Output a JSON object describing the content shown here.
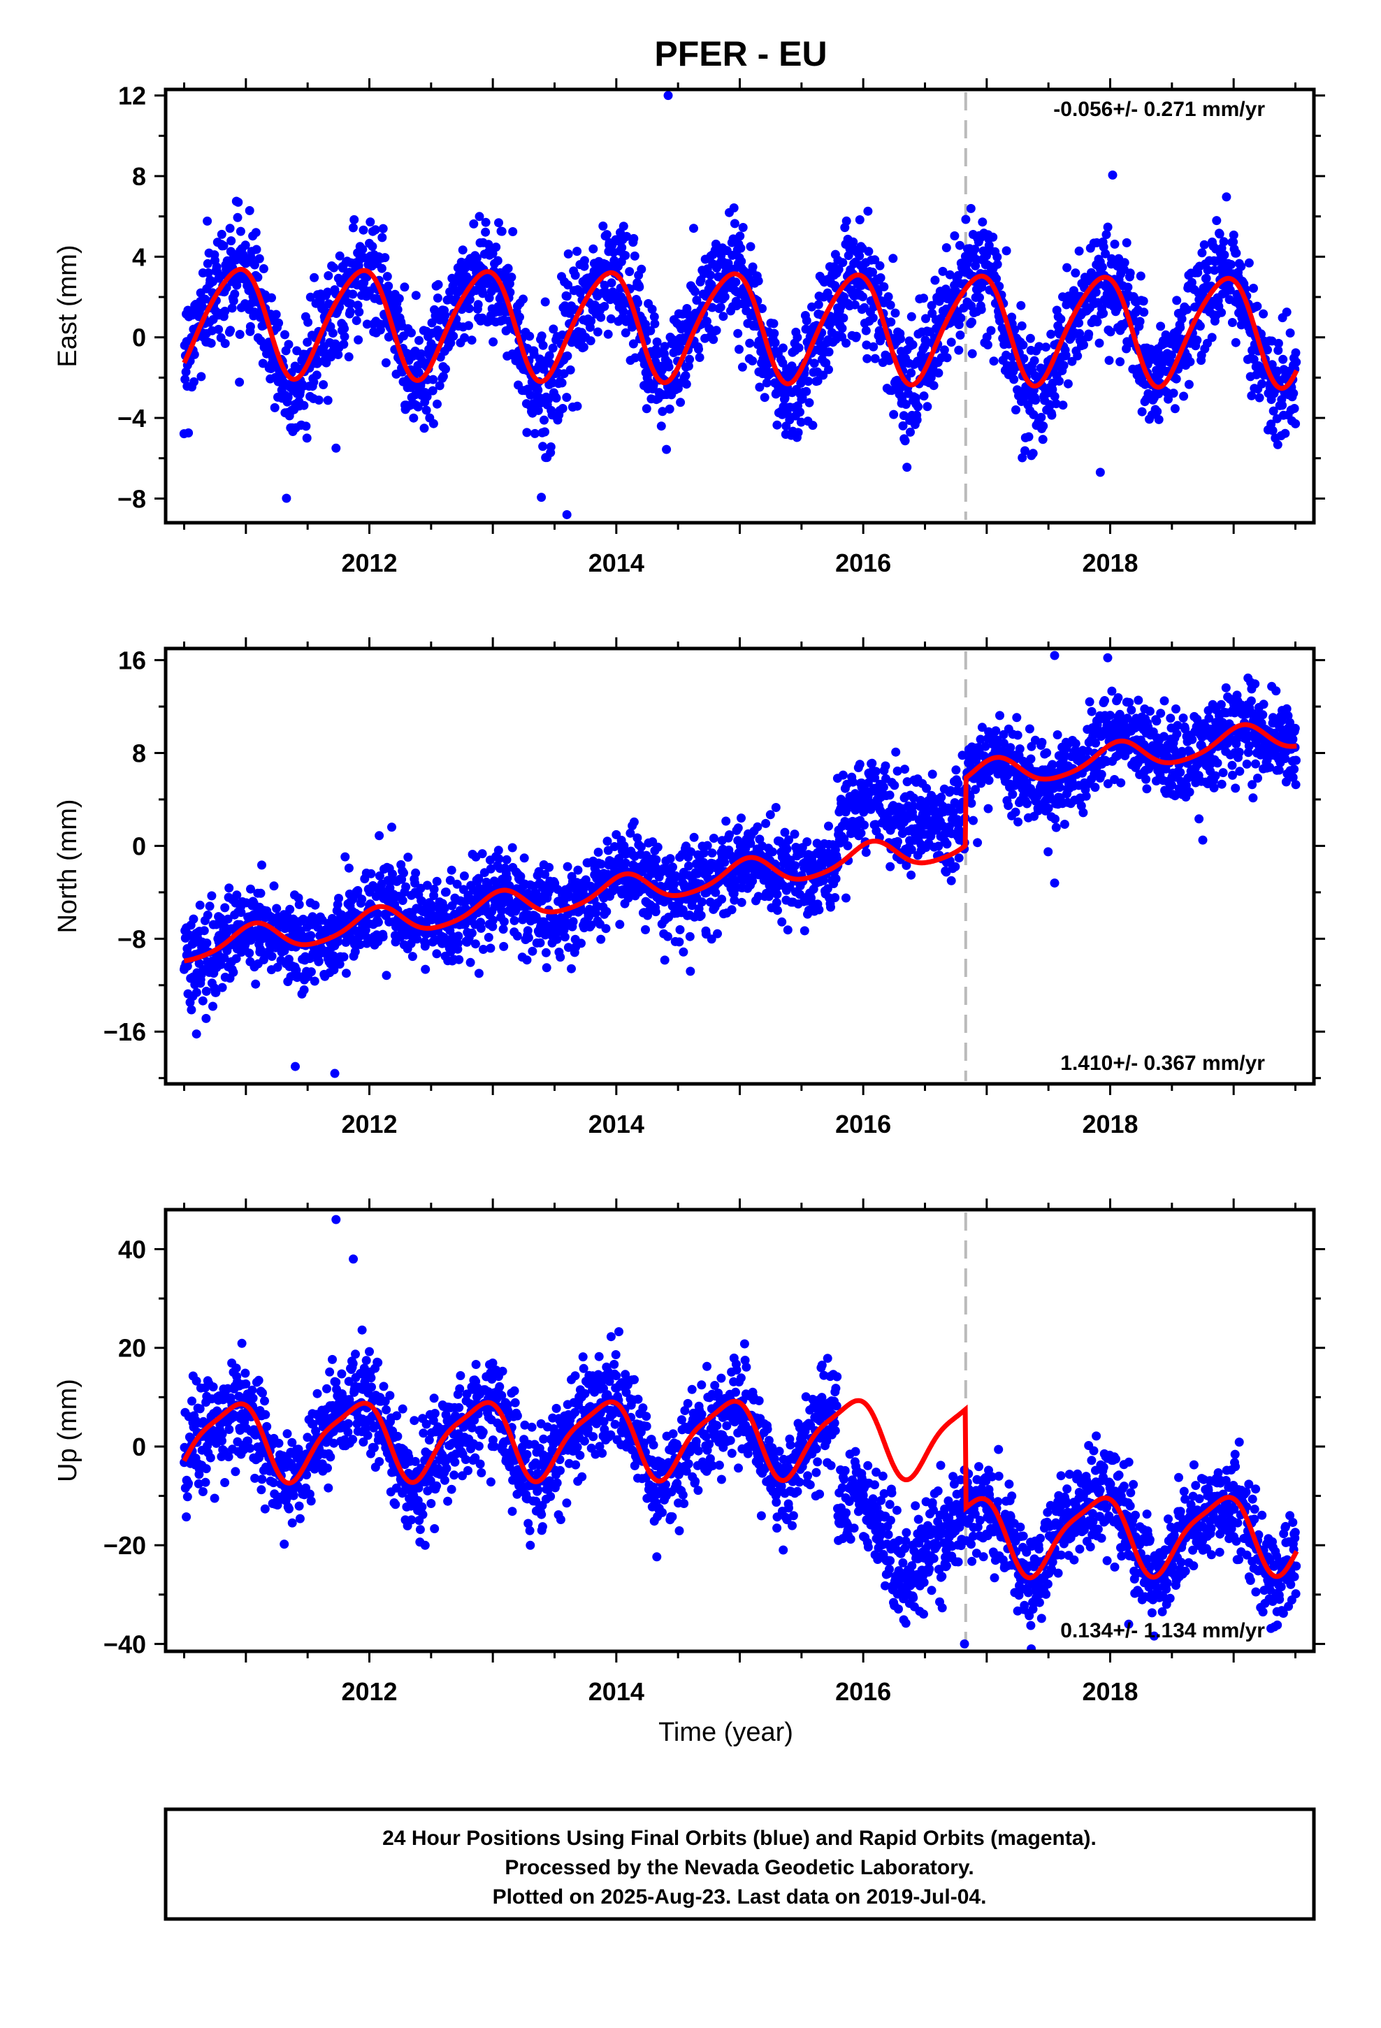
{
  "title": "PFER - EU",
  "chart_data": [
    {
      "type": "scatter",
      "panel": "east",
      "ylabel": "East (mm)",
      "xlabel": "",
      "xlim": [
        2010.35,
        2019.65
      ],
      "ylim": [
        -9.2,
        12.3
      ],
      "yticks": [
        -8,
        -4,
        0,
        4,
        8,
        12
      ],
      "ytick_labels": [
        "−8",
        "−4",
        "0",
        "4",
        "8",
        "12"
      ],
      "xticks": [
        2012,
        2014,
        2016,
        2018
      ],
      "xtick_labels": [
        "2012",
        "2014",
        "2016",
        "2018"
      ],
      "rate_text": "-0.056+/- 0.271 mm/yr",
      "rate_position": "top-right",
      "data_range": [
        2010.5,
        2019.51
      ],
      "gaps": [],
      "offsets": [
        {
          "t": 2016.83,
          "dy": 0
        }
      ],
      "model": {
        "trend": -0.056,
        "ref": 2015.0,
        "base": 0.6,
        "amp1": 2.65,
        "phase1": 2.1,
        "amp2": 0.35,
        "phase2": 0.5
      },
      "noise_sd": 1.4,
      "seasonal_scatter": 1.2,
      "outliers": [
        {
          "x": 2014.42,
          "y": 12.0
        },
        {
          "x": 2013.6,
          "y": -8.8
        },
        {
          "x": 2017.92,
          "y": -6.7
        },
        {
          "x": 2011.73,
          "y": -5.5
        }
      ],
      "series": [
        {
          "name": "24 Hour Positions",
          "role": "points",
          "color": "#0000ff"
        },
        {
          "name": "Model",
          "role": "fit",
          "color": "#ff0000"
        }
      ],
      "grid": false
    },
    {
      "type": "scatter",
      "panel": "north",
      "ylabel": "North (mm)",
      "xlabel": "",
      "xlim": [
        2010.35,
        2019.65
      ],
      "ylim": [
        -20.5,
        17
      ],
      "yticks": [
        -16,
        -8,
        0,
        8,
        16
      ],
      "ytick_labels": [
        "−16",
        "−8",
        "0",
        "8",
        "16"
      ],
      "xticks": [
        2012,
        2014,
        2016,
        2018
      ],
      "xtick_labels": [
        "2012",
        "2014",
        "2016",
        "2018"
      ],
      "rate_text": "1.410+/- 0.367 mm/yr",
      "rate_position": "bottom-right",
      "data_range": [
        2010.5,
        2019.51
      ],
      "gaps": [],
      "offsets": [
        {
          "t": 2016.83,
          "dy": 5.8
        }
      ],
      "model": {
        "trend": 1.41,
        "ref": 2015.0,
        "base": -2.5,
        "amp1": 1.2,
        "phase1": 1.2,
        "amp2": 0.2,
        "phase2": 0.3
      },
      "extra_jumps": [
        {
          "t": 2015.79,
          "dy": 6.0,
          "points_only": true
        }
      ],
      "noise_sd": 1.9,
      "seasonal_scatter": 0.8,
      "outliers": [
        {
          "x": 2010.6,
          "y": -16.2
        },
        {
          "x": 2011.4,
          "y": -19.0
        },
        {
          "x": 2011.72,
          "y": -19.6
        },
        {
          "x": 2017.55,
          "y": 16.4
        },
        {
          "x": 2017.98,
          "y": 16.2
        },
        {
          "x": 2017.55,
          "y": -3.2
        },
        {
          "x": 2014.6,
          "y": -10.8
        },
        {
          "x": 2018.75,
          "y": 0.5
        }
      ],
      "series": [
        {
          "name": "24 Hour Positions",
          "role": "points",
          "color": "#0000ff"
        },
        {
          "name": "Model",
          "role": "fit",
          "color": "#ff0000"
        }
      ],
      "grid": false
    },
    {
      "type": "scatter",
      "panel": "up",
      "ylabel": "Up (mm)",
      "xlabel": "Time (year)",
      "xlim": [
        2010.35,
        2019.65
      ],
      "ylim": [
        -41.5,
        48
      ],
      "yticks": [
        -40,
        -20,
        0,
        20,
        40
      ],
      "ytick_labels": [
        "−40",
        "−20",
        "0",
        "20",
        "40"
      ],
      "xticks": [
        2012,
        2014,
        2016,
        2018
      ],
      "xtick_labels": [
        "2012",
        "2014",
        "2016",
        "2018"
      ],
      "rate_text": "0.134+/- 1.134 mm/yr",
      "rate_position": "bottom-right",
      "data_range": [
        2010.5,
        2019.51
      ],
      "gaps": [],
      "offsets": [
        {
          "t": 2016.83,
          "dy": -20
        }
      ],
      "model": {
        "trend": 0.134,
        "ref": 2015.0,
        "base": 2.0,
        "amp1": 7.5,
        "phase1": 2.3,
        "amp2": 1.8,
        "phase2": 0.8
      },
      "extra_jumps": [
        {
          "t": 2015.79,
          "dy": -40,
          "points_only": true
        }
      ],
      "noise_sd": 5.0,
      "seasonal_scatter": 4.5,
      "outliers": [
        {
          "x": 2011.73,
          "y": 46.0
        },
        {
          "x": 2011.87,
          "y": 38.0
        },
        {
          "x": 2016.82,
          "y": -40.0
        },
        {
          "x": 2018.15,
          "y": -36.0
        }
      ],
      "series": [
        {
          "name": "24 Hour Positions",
          "role": "points",
          "color": "#0000ff"
        },
        {
          "name": "Model",
          "role": "fit",
          "color": "#ff0000"
        }
      ],
      "grid": false
    }
  ],
  "footer": {
    "line1": "24 Hour Positions Using Final Orbits (blue) and Rapid Orbits (magenta).",
    "line2": "Processed by the Nevada Geodetic Laboratory.",
    "line3": "Plotted on 2025-Aug-23. Last data on 2019-Jul-04."
  },
  "colors": {
    "points": "#0000ff",
    "model": "#ff0000",
    "offset_line": "#bbbbbb",
    "frame": "#000000"
  }
}
